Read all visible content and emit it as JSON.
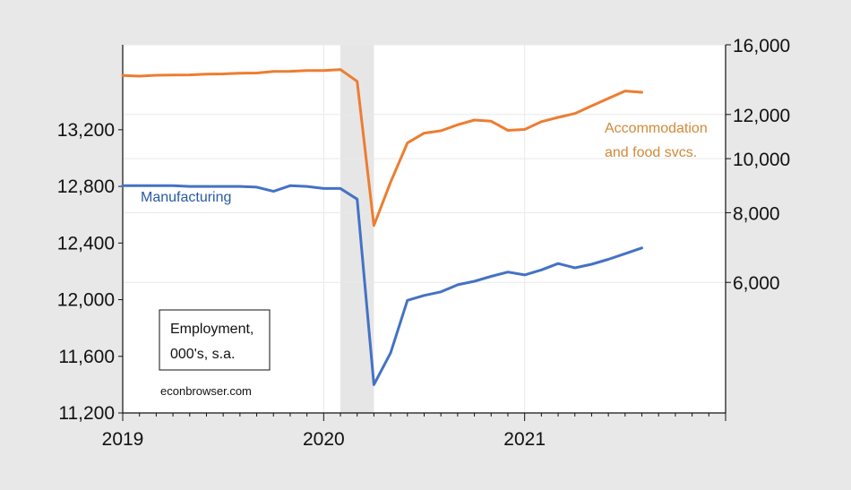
{
  "chart_data": {
    "type": "line",
    "recession_shading": {
      "start": "2020-02",
      "end": "2020-04"
    },
    "x_axis": {
      "range": [
        "2019-01",
        "2021-12"
      ],
      "tick_labels": [
        "2019",
        "2020",
        "2021"
      ]
    },
    "left_axis": {
      "range": [
        11200,
        13800
      ],
      "tick_labels": [
        "11,200",
        "11,600",
        "12,000",
        "12,400",
        "12,800",
        "13,200"
      ],
      "tick_values": [
        11200,
        11600,
        12000,
        12400,
        12800,
        13200
      ]
    },
    "right_axis": {
      "scale": "log",
      "range": [
        3500,
        16000
      ],
      "tick_labels": [
        "6,000",
        "8,000",
        "10,000",
        "12,000",
        "16,000"
      ],
      "tick_values": [
        6000,
        8000,
        10000,
        12000,
        16000
      ]
    },
    "series": [
      {
        "name": "Manufacturing",
        "axis": "left",
        "color": "#4472c4",
        "x": [
          "2019-01",
          "2019-02",
          "2019-03",
          "2019-04",
          "2019-05",
          "2019-06",
          "2019-07",
          "2019-08",
          "2019-09",
          "2019-10",
          "2019-11",
          "2019-12",
          "2020-01",
          "2020-02",
          "2020-03",
          "2020-04",
          "2020-05",
          "2020-06",
          "2020-07",
          "2020-08",
          "2020-09",
          "2020-10",
          "2020-11",
          "2020-12",
          "2021-01",
          "2021-02",
          "2021-03",
          "2021-04",
          "2021-05",
          "2021-06",
          "2021-07",
          "2021-08"
        ],
        "values": [
          12805,
          12805,
          12805,
          12805,
          12800,
          12800,
          12800,
          12800,
          12795,
          12765,
          12805,
          12800,
          12785,
          12785,
          12710,
          11400,
          11625,
          11995,
          12030,
          12055,
          12105,
          12130,
          12165,
          12195,
          12175,
          12210,
          12255,
          12225,
          12250,
          12285,
          12325,
          12365
        ]
      },
      {
        "name": "Accommodation and food svcs.",
        "axis": "right",
        "color": "#ed7d31",
        "x": [
          "2019-01",
          "2019-02",
          "2019-03",
          "2019-04",
          "2019-05",
          "2019-06",
          "2019-07",
          "2019-08",
          "2019-09",
          "2019-10",
          "2019-11",
          "2019-12",
          "2020-01",
          "2020-02",
          "2020-03",
          "2020-04",
          "2020-05",
          "2020-06",
          "2020-07",
          "2020-08",
          "2020-09",
          "2020-10",
          "2020-11",
          "2020-12",
          "2021-01",
          "2021-02",
          "2021-03",
          "2021-04",
          "2021-05",
          "2021-06",
          "2021-07",
          "2021-08"
        ],
        "values": [
          14100,
          14060,
          14110,
          14120,
          14130,
          14180,
          14190,
          14230,
          14240,
          14330,
          14340,
          14390,
          14390,
          14450,
          13760,
          7590,
          9080,
          10670,
          11110,
          11220,
          11500,
          11730,
          11670,
          11240,
          11280,
          11650,
          11860,
          12050,
          12430,
          12820,
          13220,
          13150
        ]
      }
    ],
    "annotations": [
      {
        "text": "Manufacturing"
      },
      {
        "text": "Accommodation"
      },
      {
        "text": "and food svcs."
      }
    ],
    "legend_box": [
      "Employment,",
      "000's, s.a."
    ],
    "source": "econbrowser.com"
  }
}
